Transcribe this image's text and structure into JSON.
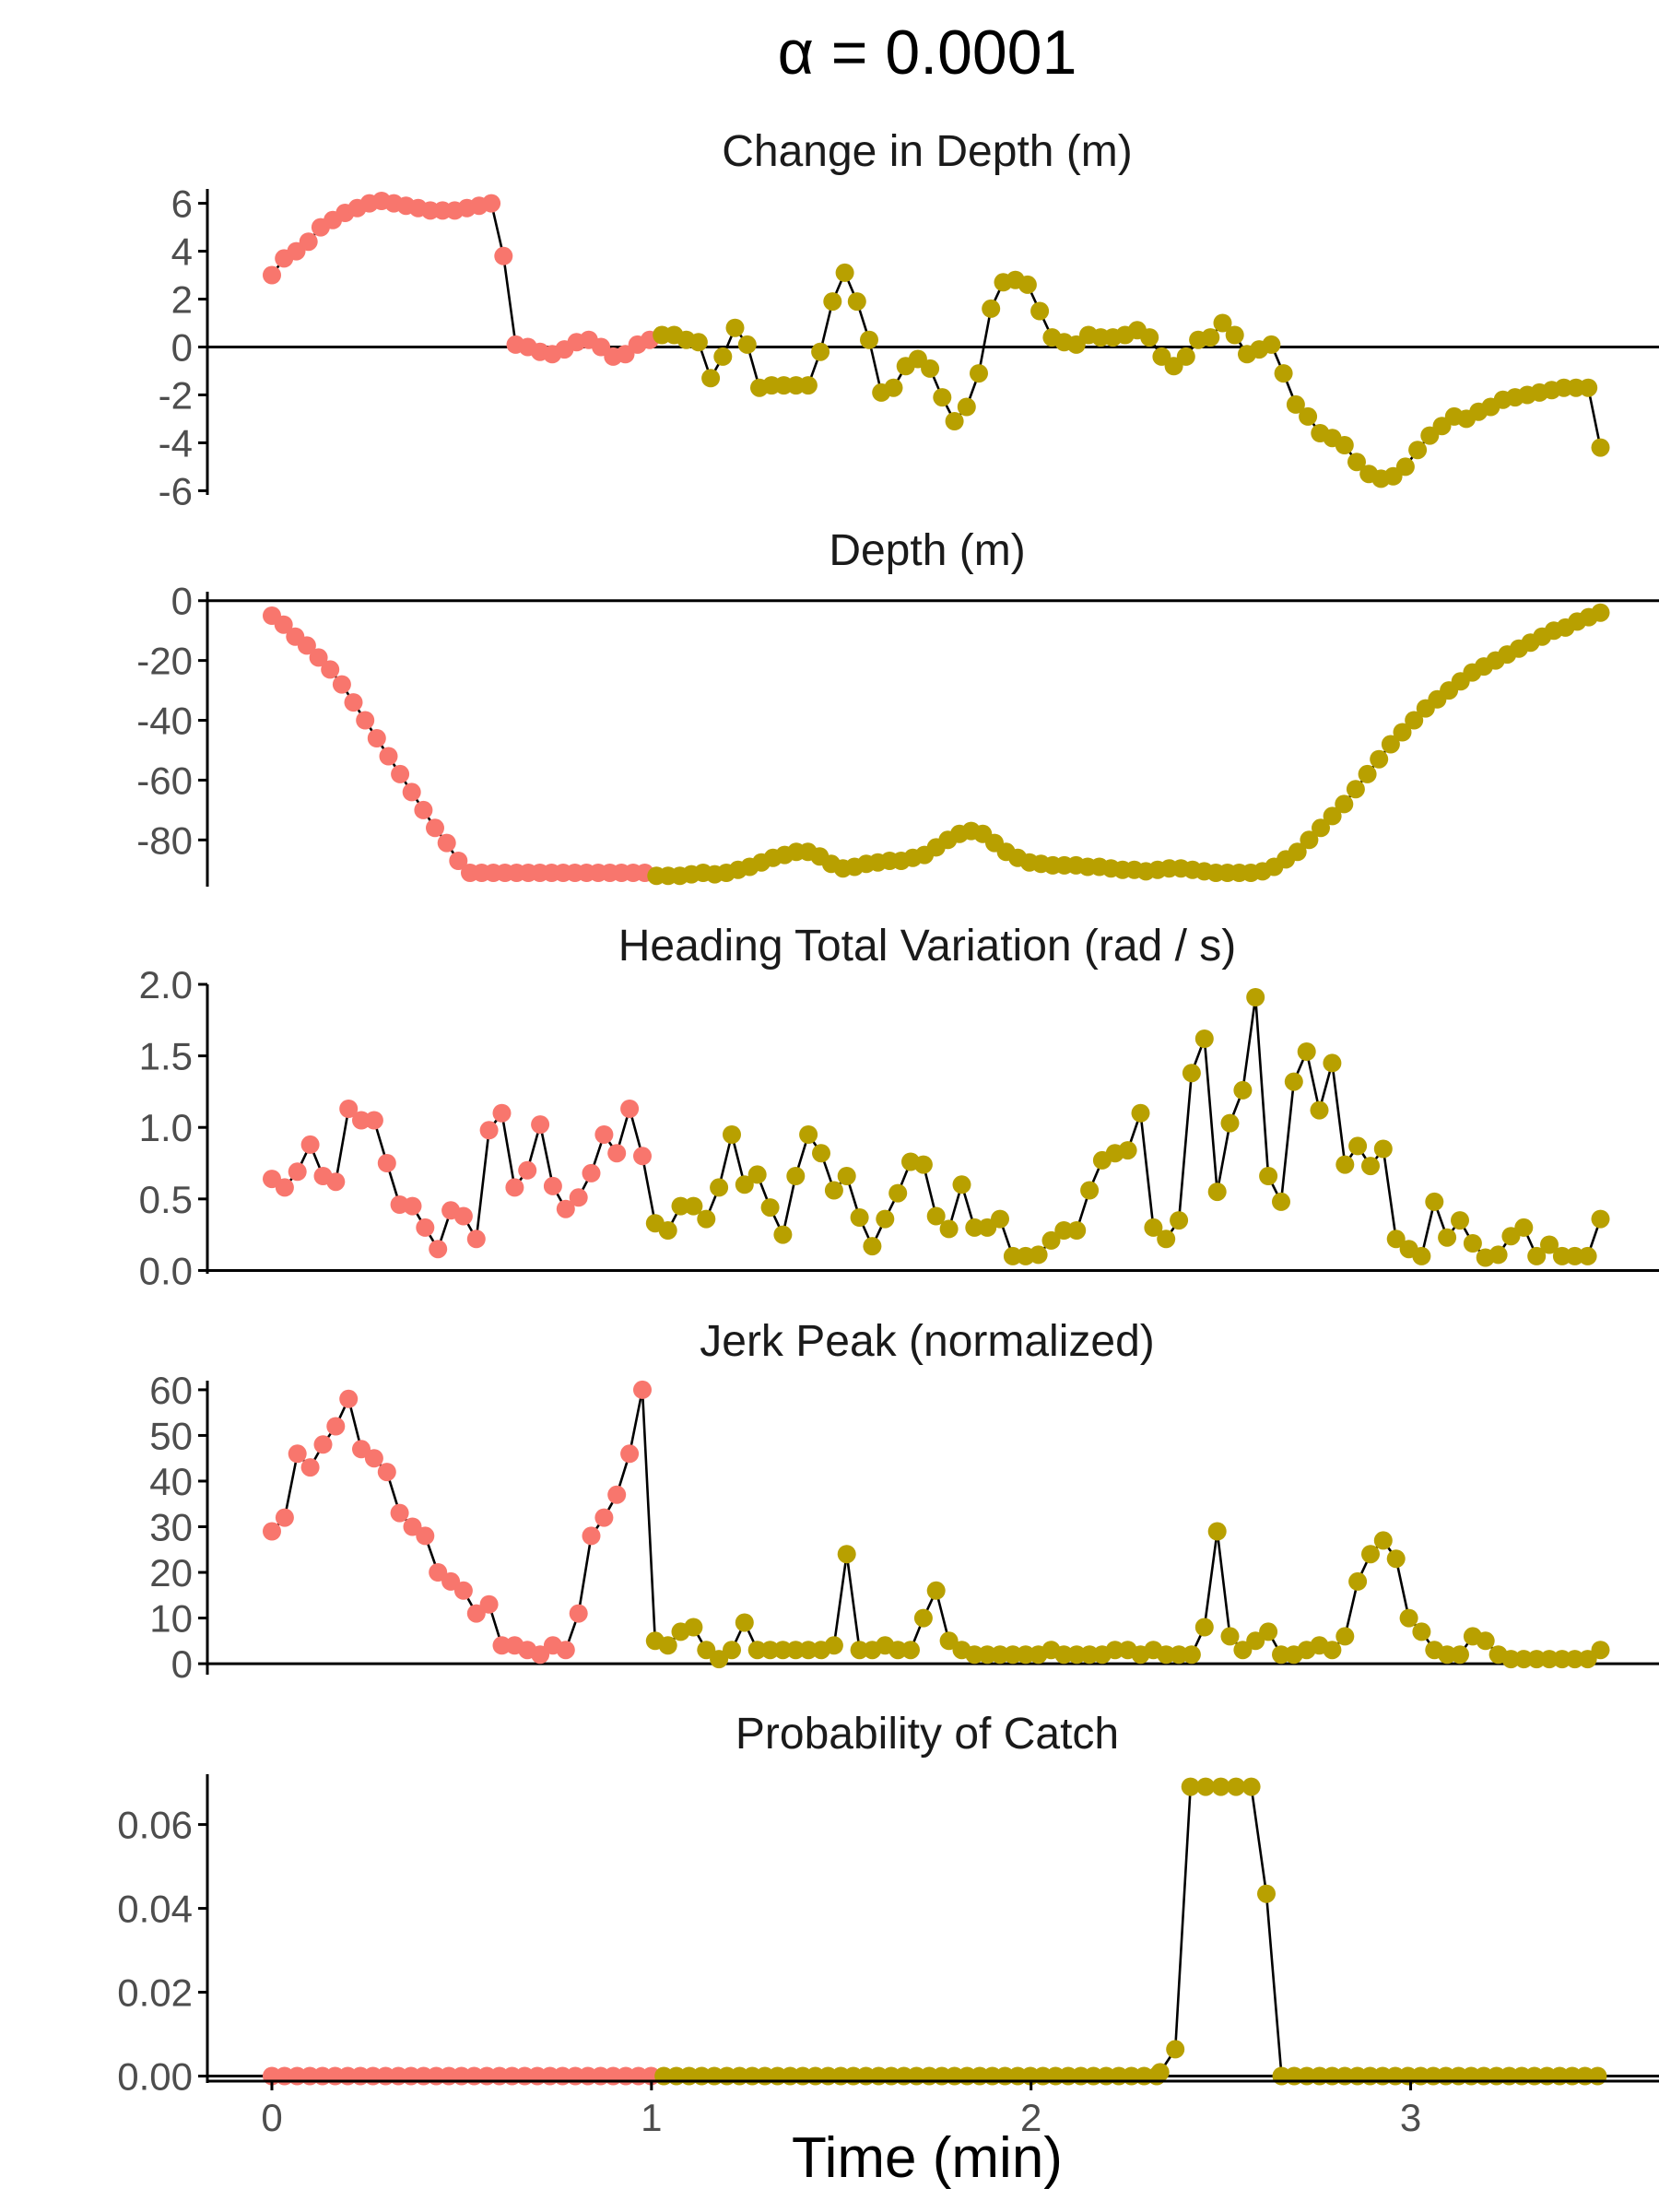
{
  "chart_data": {
    "type": "scatter",
    "title": "α = 0.0001",
    "xlabel": "Time (min)",
    "xlim": [
      -0.17,
      3.63
    ],
    "x_ticks": [
      0,
      1,
      2,
      3
    ],
    "x_tick_labels": [
      "0",
      "1",
      "2",
      "3"
    ],
    "grid": false,
    "line_color": "#000000",
    "point_colors": {
      "before": "#F8766D",
      "after": "#B8A000"
    },
    "split_x": 1.0,
    "panels": [
      {
        "title": "Change in Depth (m)",
        "ylim": [
          -6.1,
          6.6
        ],
        "y_ticks": [
          -6,
          -4,
          -2,
          0,
          2,
          4,
          6
        ],
        "y_tick_labels": [
          "-6",
          "-4",
          "-2",
          "0",
          "2",
          "4",
          "6"
        ],
        "hline": 0,
        "values": [
          3,
          3.7,
          4,
          4.4,
          5,
          5.3,
          5.6,
          5.8,
          6,
          6.1,
          6,
          5.9,
          5.8,
          5.7,
          5.7,
          5.7,
          5.8,
          5.9,
          6,
          3.8,
          0.1,
          0,
          -0.2,
          -0.3,
          -0.1,
          0.2,
          0.3,
          0,
          -0.4,
          -0.3,
          0.1,
          0.3,
          0.5,
          0.5,
          0.3,
          0.2,
          -1.3,
          -0.4,
          0.8,
          0.1,
          -1.7,
          -1.6,
          -1.6,
          -1.6,
          -1.6,
          -0.2,
          1.9,
          3.1,
          1.9,
          0.3,
          -1.9,
          -1.7,
          -0.8,
          -0.5,
          -0.9,
          -2.1,
          -3.1,
          -2.5,
          -1.1,
          1.6,
          2.7,
          2.8,
          2.6,
          1.5,
          0.4,
          0.2,
          0.1,
          0.5,
          0.4,
          0.4,
          0.5,
          0.7,
          0.4,
          -0.4,
          -0.8,
          -0.4,
          0.3,
          0.4,
          1,
          0.5,
          -0.3,
          -0.1,
          0.1,
          -1.1,
          -2.4,
          -2.9,
          -3.6,
          -3.8,
          -4.1,
          -4.8,
          -5.3,
          -5.5,
          -5.4,
          -5,
          -4.3,
          -3.7,
          -3.3,
          -2.9,
          -3,
          -2.7,
          -2.5,
          -2.2,
          -2.1,
          -2,
          -1.9,
          -1.8,
          -1.7,
          -1.7,
          -1.7,
          -4.2
        ]
      },
      {
        "title": "Depth (m)",
        "ylim": [
          -95,
          3
        ],
        "y_ticks": [
          -80,
          -60,
          -40,
          -20,
          0
        ],
        "y_tick_labels": [
          "-80",
          "-60",
          "-40",
          "-20",
          "0"
        ],
        "hline": 0,
        "values": [
          -5,
          -8,
          -12,
          -15,
          -19,
          -23,
          -28,
          -34,
          -40,
          -46,
          -52,
          -58,
          -64,
          -70,
          -76,
          -81,
          -87,
          -91,
          -91,
          -91,
          -91,
          -91,
          -91,
          -91,
          -91,
          -91,
          -91,
          -91,
          -91,
          -91,
          -91,
          -91,
          -91,
          -92,
          -92,
          -92,
          -91.5,
          -91,
          -91.5,
          -91,
          -90,
          -89,
          -87.5,
          -86,
          -85,
          -84,
          -84,
          -85.5,
          -88,
          -89.5,
          -89,
          -88,
          -87.5,
          -87,
          -87,
          -86,
          -85,
          -82.5,
          -80,
          -78,
          -77,
          -78,
          -81,
          -84,
          -86,
          -87.5,
          -88,
          -88.5,
          -88.5,
          -88.5,
          -89,
          -89,
          -89.5,
          -90,
          -90,
          -90.5,
          -90,
          -89.5,
          -89.5,
          -90,
          -90.5,
          -91,
          -91,
          -91,
          -91,
          -90.5,
          -89,
          -86.5,
          -84,
          -80,
          -76,
          -72,
          -68,
          -63,
          -58,
          -53,
          -48,
          -44,
          -40,
          -36,
          -33,
          -30,
          -27,
          -24,
          -22,
          -20,
          -18,
          -16,
          -14,
          -12,
          -10,
          -9,
          -7,
          -5.5,
          -4
        ]
      },
      {
        "title": "Heading Total Variation (rad / s)",
        "ylim": [
          -0.01,
          2.0
        ],
        "y_ticks": [
          0,
          0.5,
          1,
          1.5,
          2
        ],
        "y_tick_labels": [
          "0.0",
          "0.5",
          "1.0",
          "1.5",
          "2.0"
        ],
        "hline": 0,
        "values": [
          0.64,
          0.58,
          0.69,
          0.88,
          0.66,
          0.62,
          1.13,
          1.05,
          1.05,
          0.75,
          0.46,
          0.45,
          0.3,
          0.15,
          0.42,
          0.38,
          0.22,
          0.98,
          1.1,
          0.58,
          0.7,
          1.02,
          0.59,
          0.43,
          0.51,
          0.68,
          0.95,
          0.82,
          1.13,
          0.8,
          0.33,
          0.28,
          0.45,
          0.45,
          0.36,
          0.58,
          0.95,
          0.6,
          0.67,
          0.44,
          0.25,
          0.66,
          0.95,
          0.82,
          0.56,
          0.66,
          0.37,
          0.17,
          0.36,
          0.54,
          0.76,
          0.74,
          0.38,
          0.29,
          0.6,
          0.3,
          0.3,
          0.36,
          0.1,
          0.1,
          0.11,
          0.21,
          0.28,
          0.28,
          0.56,
          0.77,
          0.82,
          0.84,
          1.1,
          0.3,
          0.22,
          0.35,
          1.38,
          1.62,
          0.55,
          1.03,
          1.26,
          1.91,
          0.66,
          0.48,
          1.32,
          1.53,
          1.12,
          1.45,
          0.74,
          0.87,
          0.73,
          0.85,
          0.22,
          0.15,
          0.1,
          0.48,
          0.23,
          0.35,
          0.19,
          0.09,
          0.11,
          0.24,
          0.3,
          0.1,
          0.18,
          0.1,
          0.1,
          0.1,
          0.36
        ]
      },
      {
        "title": "Jerk Peak (normalized)",
        "ylim": [
          -2,
          62
        ],
        "y_ticks": [
          0,
          10,
          20,
          30,
          40,
          50,
          60
        ],
        "y_tick_labels": [
          "0",
          "10",
          "20",
          "30",
          "40",
          "50",
          "60"
        ],
        "hline": 0,
        "values": [
          29,
          32,
          46,
          43,
          48,
          52,
          58,
          47,
          45,
          42,
          33,
          30,
          28,
          20,
          18,
          16,
          11,
          13,
          4,
          4,
          3,
          2,
          4,
          3,
          11,
          28,
          32,
          37,
          46,
          60,
          5,
          4,
          7,
          8,
          3,
          1,
          3,
          9,
          3,
          3,
          3,
          3,
          3,
          3,
          4,
          24,
          3,
          3,
          4,
          3,
          3,
          10,
          16,
          5,
          3,
          2,
          2,
          2,
          2,
          2,
          2,
          3,
          2,
          2,
          2,
          2,
          3,
          3,
          2,
          3,
          2,
          2,
          2,
          8,
          29,
          6,
          3,
          5,
          7,
          2,
          2,
          3,
          4,
          3,
          6,
          18,
          24,
          27,
          23,
          10,
          7,
          3,
          2,
          2,
          6,
          5,
          2,
          1,
          1,
          1,
          1,
          1,
          1,
          1,
          3
        ]
      },
      {
        "title": "Probability of Catch",
        "ylim": [
          -0.0012,
          0.072
        ],
        "y_ticks": [
          0,
          0.02,
          0.04,
          0.06
        ],
        "y_tick_labels": [
          "0.00",
          "0.02",
          "0.04",
          "0.06"
        ],
        "hline": 0,
        "spike": {
          "x": [
            2.34,
            2.38,
            2.42,
            2.46,
            2.5,
            2.54,
            2.58,
            2.62
          ],
          "y": [
            0.0009,
            0.0064,
            0.069,
            0.069,
            0.069,
            0.069,
            0.069,
            0.0435
          ]
        },
        "flat_until": 2.34,
        "flat_from": 2.66
      }
    ]
  }
}
